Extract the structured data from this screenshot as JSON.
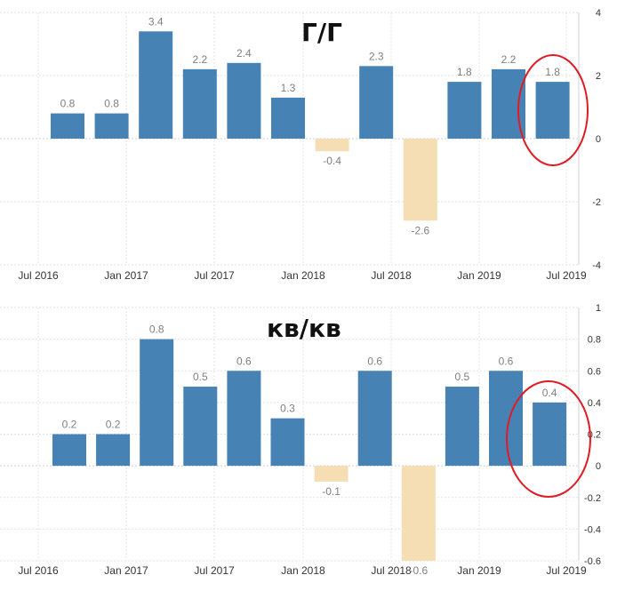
{
  "colors": {
    "positive": "#4682b4",
    "negative": "#f5deb3",
    "highlight": "#e01b24",
    "grid": "#e3e3e3"
  },
  "chart_data": [
    {
      "type": "bar",
      "title": "Г/Г",
      "xlabel": "",
      "ylabel": "",
      "ylim": [
        -4,
        4
      ],
      "yticks": [
        "4",
        "2",
        "0",
        "-2",
        "-4"
      ],
      "xtick_labels": [
        "Jul 2016",
        "Jan 2017",
        "Jul 2017",
        "Jan 2018",
        "Jul 2018",
        "Jan 2019",
        "Jul 2019"
      ],
      "categories": [
        "2016 Q3",
        "2016 Q4",
        "2017 Q1",
        "2017 Q2",
        "2017 Q3",
        "2017 Q4",
        "2018 Q1",
        "2018 Q2",
        "2018 Q3",
        "2018 Q4",
        "2019 Q1",
        "2019 Q2"
      ],
      "values": [
        0.8,
        0.8,
        3.4,
        2.2,
        2.4,
        1.3,
        -0.4,
        2.3,
        -2.6,
        1.8,
        2.2,
        1.8
      ],
      "grid": true,
      "highlighted_category": "2019 Q2"
    },
    {
      "type": "bar",
      "title": "кв/кв",
      "xlabel": "",
      "ylabel": "",
      "ylim": [
        -0.6,
        1
      ],
      "yticks": [
        "1",
        "0.8",
        "0.6",
        "0.4",
        "0.2",
        "0",
        "-0.2",
        "-0.4",
        "-0.6"
      ],
      "xtick_labels": [
        "Jul 2016",
        "Jan 2017",
        "Jul 2017",
        "Jan 2018",
        "Jul 2018",
        "Jan 2019",
        "Jul 2019"
      ],
      "categories": [
        "2016 Q3",
        "2016 Q4",
        "2017 Q1",
        "2017 Q2",
        "2017 Q3",
        "2017 Q4",
        "2018 Q1",
        "2018 Q2",
        "2018 Q3",
        "2018 Q4",
        "2019 Q1",
        "2019 Q2"
      ],
      "values": [
        0.2,
        0.2,
        0.8,
        0.5,
        0.6,
        0.3,
        -0.1,
        0.6,
        -0.6,
        0.5,
        0.6,
        0.4
      ],
      "grid": true,
      "highlighted_category": "2019 Q2"
    }
  ]
}
